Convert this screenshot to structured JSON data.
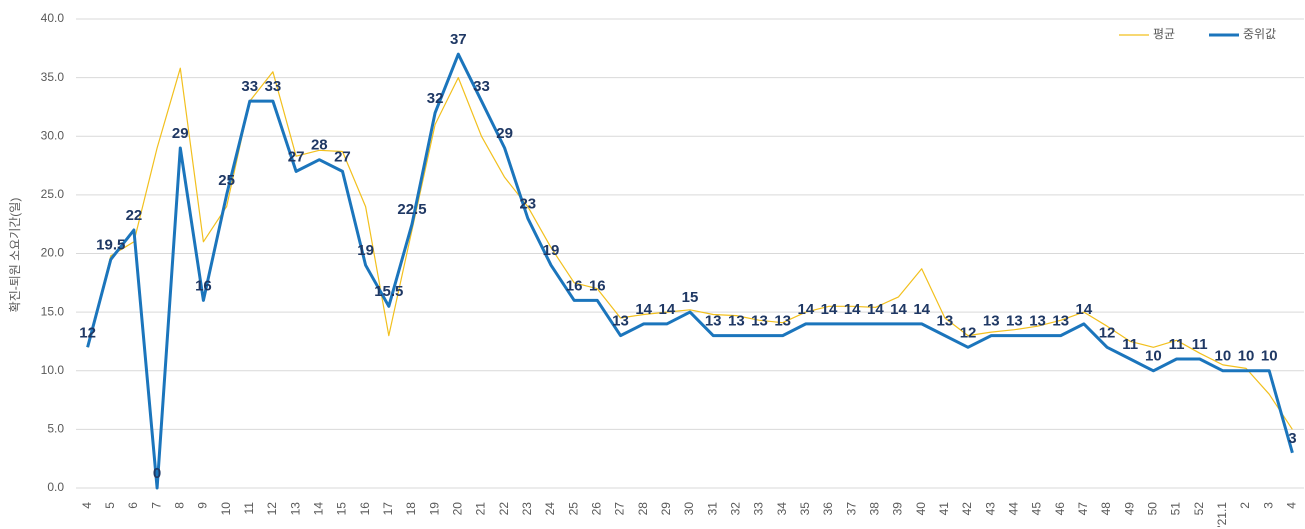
{
  "chart_data": {
    "type": "line",
    "y_label": "확진-퇴원 소요기간(일)",
    "categories": [
      "4",
      "5",
      "6",
      "7",
      "8",
      "9",
      "10",
      "11",
      "12",
      "13",
      "14",
      "15",
      "16",
      "17",
      "18",
      "19",
      "20",
      "21",
      "22",
      "23",
      "24",
      "25",
      "26",
      "27",
      "28",
      "29",
      "30",
      "31",
      "32",
      "33",
      "34",
      "35",
      "36",
      "37",
      "38",
      "39",
      "40",
      "41",
      "42",
      "43",
      "44",
      "45",
      "46",
      "47",
      "48",
      "49",
      "50",
      "51",
      "52",
      "'21.1",
      "2",
      "3",
      "4"
    ],
    "series": [
      {
        "name": "평균",
        "color": "#f2c01e",
        "width": 1.2,
        "data_labels": false,
        "values": [
          12,
          19.8,
          21,
          29,
          35.8,
          21,
          24,
          33,
          35.5,
          28.3,
          28.8,
          28.7,
          24,
          13,
          22,
          31,
          35,
          30,
          26.5,
          24,
          20.5,
          17.5,
          17,
          14.5,
          14.8,
          15,
          15.2,
          14.8,
          14.7,
          14.3,
          14.1,
          15,
          15.5,
          15.5,
          15.4,
          16.3,
          18.7,
          14.5,
          13,
          13.3,
          13.5,
          13.8,
          14.3,
          15,
          13.8,
          12.5,
          12,
          12.6,
          11.5,
          10.5,
          10.2,
          8,
          5
        ]
      },
      {
        "name": "중위값",
        "color": "#1b75bc",
        "width": 3,
        "data_labels": true,
        "values": [
          12,
          19.5,
          22,
          0,
          29,
          16,
          25,
          33,
          33,
          27,
          28,
          27,
          19,
          15.5,
          22.5,
          32,
          37,
          33,
          29,
          23,
          19,
          16,
          16,
          13,
          14,
          14,
          15,
          13,
          13,
          13,
          13,
          14,
          14,
          14,
          14,
          14,
          14,
          13,
          12,
          13,
          13,
          13,
          13,
          14,
          12,
          11,
          10,
          11,
          11,
          10,
          10,
          10,
          3
        ]
      }
    ],
    "ylim": [
      0,
      40
    ],
    "yticks": [
      {
        "value": 0,
        "label": "0.0"
      },
      {
        "value": 5,
        "label": "5.0"
      },
      {
        "value": 10,
        "label": "10.0"
      },
      {
        "value": 15,
        "label": "15.0"
      },
      {
        "value": 20,
        "label": "20.0"
      },
      {
        "value": 25,
        "label": "25.0"
      },
      {
        "value": 30,
        "label": "30.0"
      },
      {
        "value": 35,
        "label": "35.0"
      },
      {
        "value": 40,
        "label": "40.0"
      }
    ],
    "grid": true,
    "legend": "top-right"
  }
}
